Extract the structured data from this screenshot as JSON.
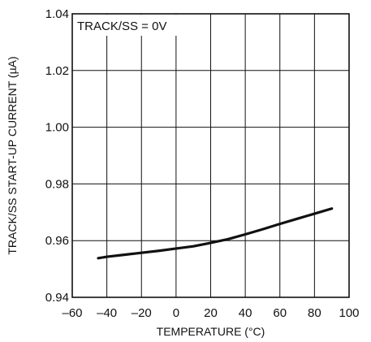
{
  "chart_data": {
    "type": "line",
    "title": "",
    "xlabel": "TEMPERATURE (°C)",
    "ylabel": "TRACK/SS START-UP CURRENT (µA)",
    "annotation": "TRACK/SS = 0V",
    "xlim": [
      -60,
      100
    ],
    "ylim": [
      0.94,
      1.04
    ],
    "x_ticks": [
      -60,
      -40,
      -20,
      0,
      20,
      40,
      60,
      80,
      100
    ],
    "y_ticks": [
      0.94,
      0.96,
      0.98,
      1.0,
      1.02,
      1.04
    ],
    "x_tick_labels": [
      "–60",
      "–40",
      "–20",
      "0",
      "20",
      "40",
      "60",
      "80",
      "100"
    ],
    "y_tick_labels": [
      "0.94",
      "0.96",
      "0.98",
      "1.00",
      "1.02",
      "1.04"
    ],
    "grid": true,
    "series": [
      {
        "x": [
          -45,
          -40,
          -30,
          -20,
          -10,
          0,
          10,
          20,
          30,
          40,
          50,
          60,
          70,
          80,
          90
        ],
        "y": [
          0.9538,
          0.9543,
          0.955,
          0.9557,
          0.9564,
          0.9572,
          0.958,
          0.9592,
          0.9605,
          0.9622,
          0.964,
          0.9659,
          0.9677,
          0.9695,
          0.9713
        ]
      }
    ]
  }
}
